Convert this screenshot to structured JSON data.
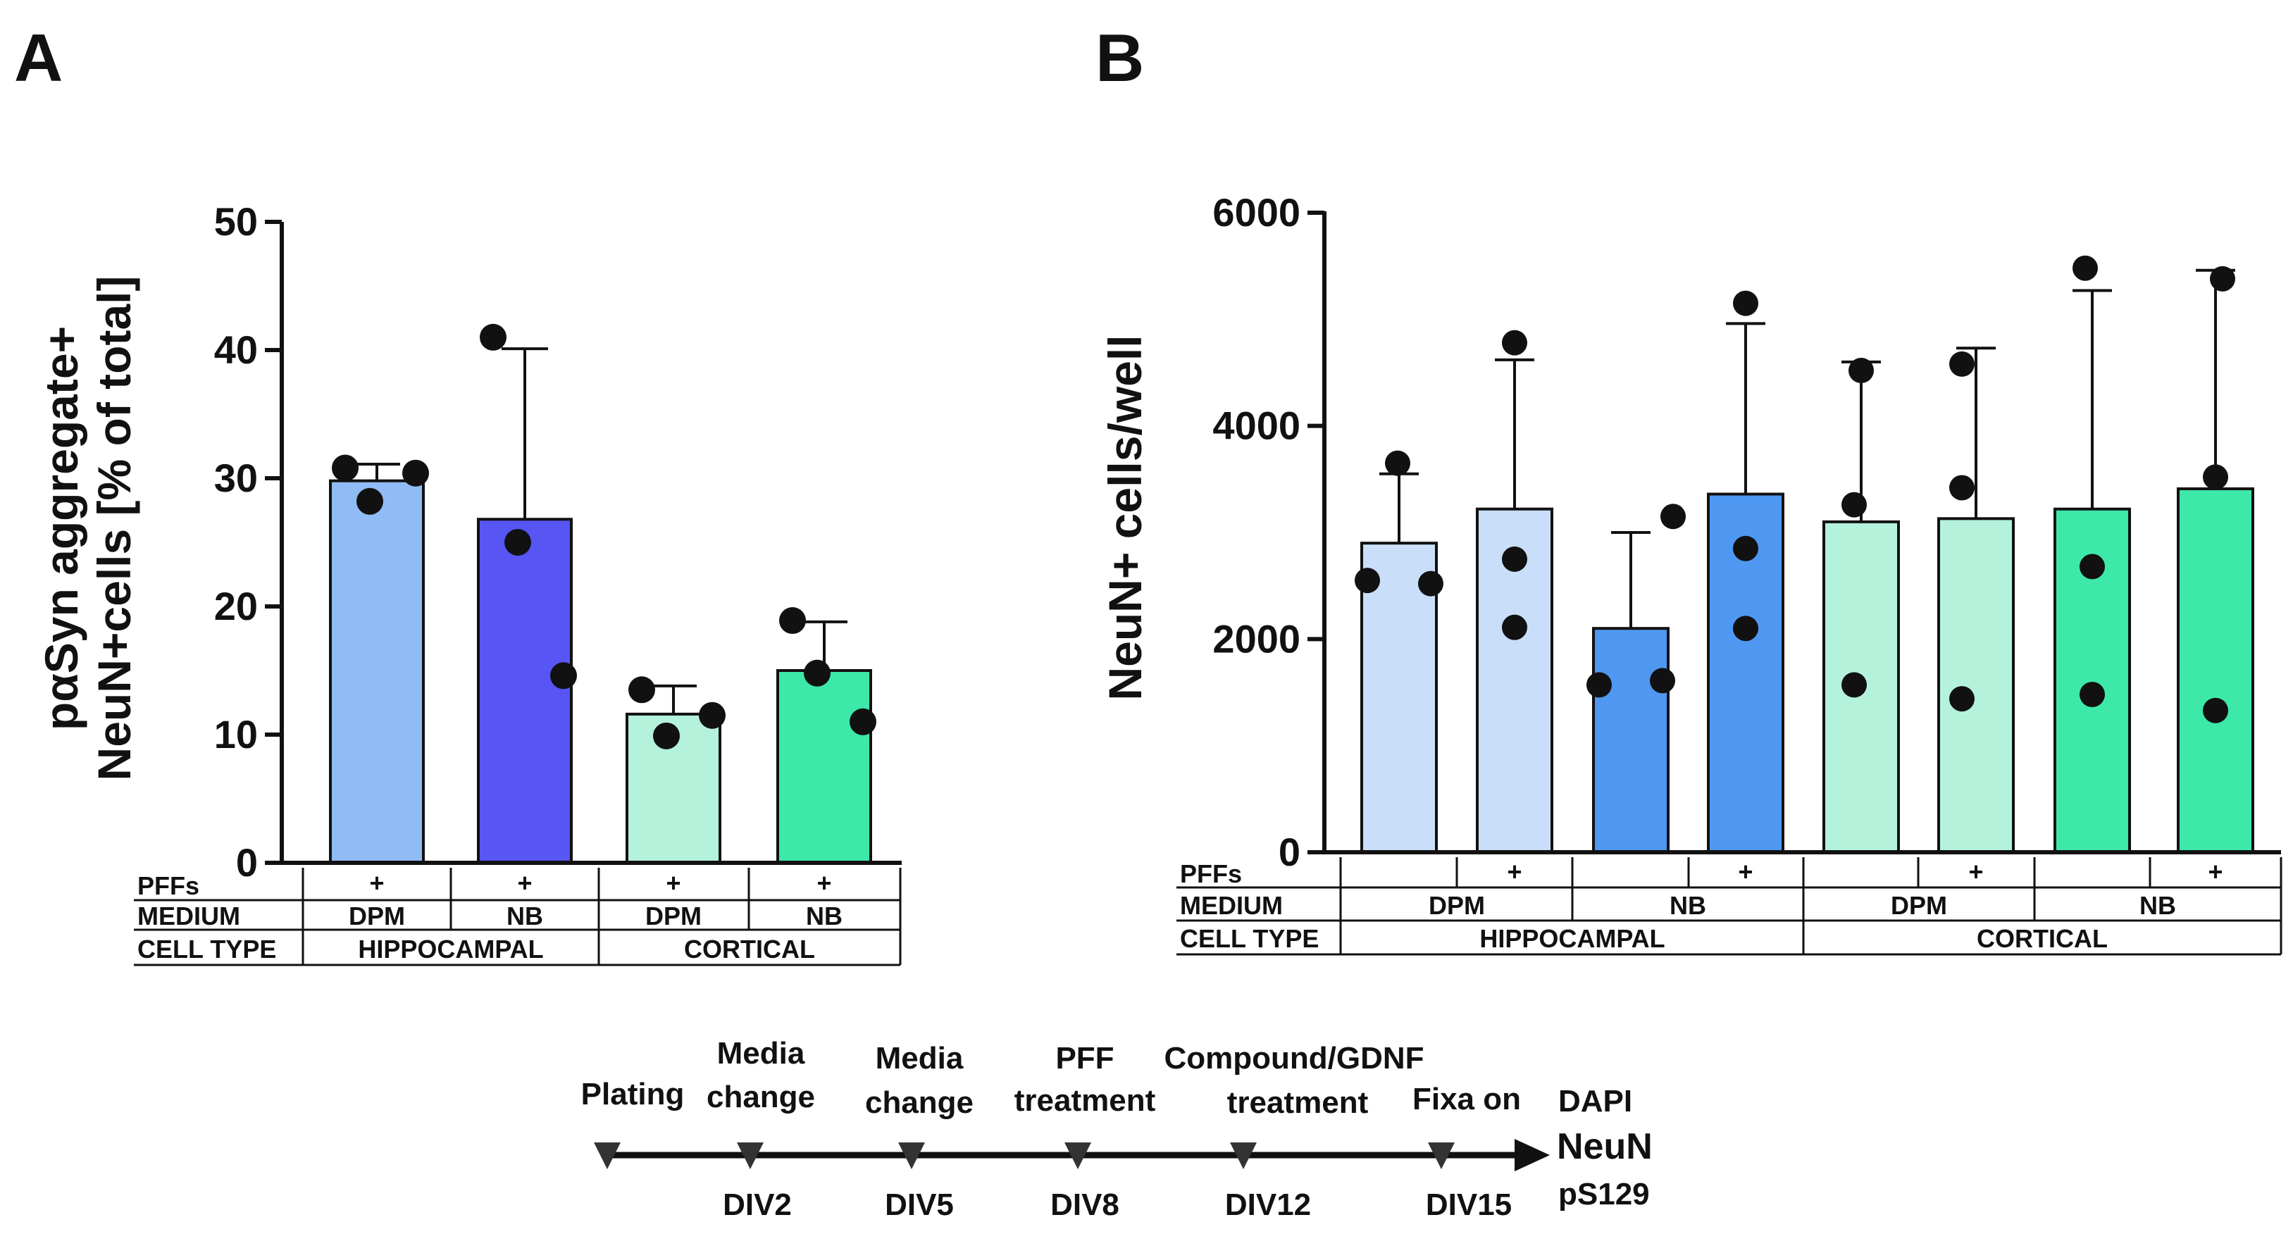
{
  "panels": {
    "a": {
      "letter": "A",
      "ylabel_line1": "pαSyn aggregate+",
      "ylabel_line2": "NeuN+cells [% of total]",
      "row_labels": [
        "PFFs",
        "MEDIUM",
        "CELL TYPE"
      ],
      "pffs": [
        "+",
        "+",
        "+",
        "+"
      ],
      "medium": [
        "DPM",
        "NB",
        "DPM",
        "NB"
      ],
      "cell_type": [
        "HIPPOCAMPAL",
        "CORTICAL"
      ]
    },
    "b": {
      "letter": "B",
      "ylabel": "NeuN+ cells/well",
      "row_labels": [
        "PFFs",
        "MEDIUM",
        "CELL TYPE"
      ],
      "pffs": [
        "",
        "+",
        "",
        "+",
        "",
        "+",
        "",
        "+"
      ],
      "medium": [
        "DPM",
        "NB",
        "DPM",
        "NB"
      ],
      "cell_type": [
        "HIPPOCAMPAL",
        "CORTICAL"
      ]
    }
  },
  "chart_data": [
    {
      "type": "bar",
      "panel": "A",
      "ylabel": "pαSyn aggregate+ NeuN+cells [% of total]",
      "ylim": [
        0,
        50
      ],
      "yticks": [
        0,
        10,
        20,
        30,
        40,
        50
      ],
      "categories": [
        "HIPPOCAMPAL DPM +",
        "HIPPOCAMPAL NB +",
        "CORTICAL DPM +",
        "CORTICAL NB +"
      ],
      "values": [
        29.8,
        26.8,
        11.6,
        15.0
      ],
      "errors": [
        1.3,
        13.3,
        2.2,
        3.8
      ],
      "points": [
        [
          30.8,
          28.2,
          30.4
        ],
        [
          41.0,
          25.0,
          14.6
        ],
        [
          13.5,
          9.9,
          11.5
        ],
        [
          18.9,
          14.8,
          11.0
        ]
      ],
      "colors": [
        "#8fbcf4",
        "#5855f5",
        "#b4f2dc",
        "#3de8a8"
      ]
    },
    {
      "type": "bar",
      "panel": "B",
      "ylabel": "NeuN+ cells/well",
      "ylim": [
        0,
        6000
      ],
      "yticks": [
        0,
        2000,
        4000,
        6000
      ],
      "categories": [
        "HIPPOCAMPAL DPM -",
        "HIPPOCAMPAL DPM +",
        "HIPPOCAMPAL NB -",
        "HIPPOCAMPAL NB +",
        "CORTICAL DPM -",
        "CORTICAL DPM +",
        "CORTICAL NB -",
        "CORTICAL NB +"
      ],
      "values": [
        2900,
        3220,
        2100,
        3360,
        3100,
        3130,
        3220,
        3410
      ],
      "errors": [
        650,
        1400,
        900,
        1600,
        1500,
        1600,
        2050,
        2050
      ],
      "points": [
        [
          3650,
          2550,
          2520
        ],
        [
          4780,
          2750,
          2110
        ],
        [
          3150,
          1570,
          1610
        ],
        [
          5150,
          2850,
          2100
        ],
        [
          4520,
          3260,
          1570
        ],
        [
          4580,
          3420,
          1440
        ],
        [
          5480,
          2680,
          1480
        ],
        [
          5380,
          3520,
          1330
        ]
      ],
      "colors": [
        "#c9def8",
        "#c9def8",
        "#4f98f2",
        "#4f98f2",
        "#b4f2dc",
        "#b4f2dc",
        "#3de8a8",
        "#3de8a8"
      ]
    }
  ],
  "timeline": {
    "events": [
      {
        "top1": "",
        "top2": "Plating",
        "bottom": ""
      },
      {
        "top1": "Media",
        "top2": "change",
        "bottom": "DIV2"
      },
      {
        "top1": "Media",
        "top2": "change",
        "bottom": "DIV5"
      },
      {
        "top1": "PFF",
        "top2": "treatment",
        "bottom": "DIV8"
      },
      {
        "top1": "Compound/GDNF",
        "top2": "treatment",
        "bottom": "DIV12"
      },
      {
        "top1": "",
        "top2": "Fixa   on",
        "bottom": "DIV15"
      }
    ],
    "stains": [
      "DAPI",
      "NeuN",
      "pS129"
    ]
  }
}
